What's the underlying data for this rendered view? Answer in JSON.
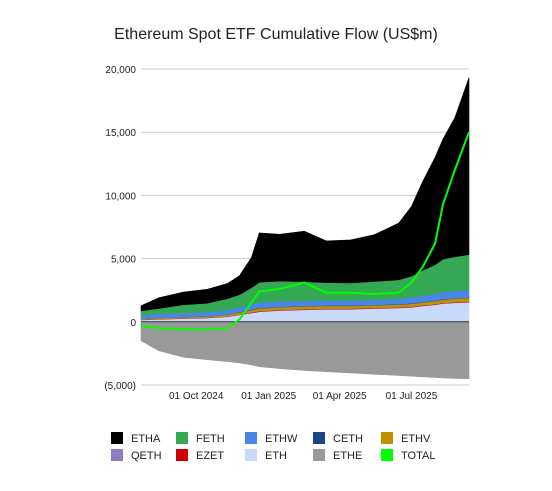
{
  "chart_data": {
    "type": "area",
    "title": "Ethereum Spot ETF Cumulative Flow (US$m)",
    "xlabel": "",
    "ylabel": "",
    "ylim": [
      -5000,
      20000
    ],
    "yticks": [
      20000,
      15000,
      10000,
      5000,
      0,
      -5000
    ],
    "ytick_labels": [
      "20,000",
      "15,000",
      "10,000",
      "5,000",
      "0",
      "(5,000)"
    ],
    "xlim": [
      "2024-07-23",
      "2025-09-12"
    ],
    "xticks": [
      "2024-10-01",
      "2025-01-01",
      "2025-04-01",
      "2025-07-01"
    ],
    "xtick_labels": [
      "01 Oct 2024",
      "01 Jan 2025",
      "01 Apr 2025",
      "01 Jul 2025"
    ],
    "grid": true,
    "legend_position": "bottom",
    "x": [
      "2024-07-23",
      "2024-08-15",
      "2024-09-15",
      "2024-10-15",
      "2024-11-10",
      "2024-11-25",
      "2024-12-10",
      "2024-12-20",
      "2025-01-15",
      "2025-02-15",
      "2025-03-15",
      "2025-04-15",
      "2025-05-15",
      "2025-06-15",
      "2025-07-01",
      "2025-07-15",
      "2025-07-31",
      "2025-08-10",
      "2025-08-25",
      "2025-09-12"
    ],
    "series": [
      {
        "name": "ETHE",
        "color": "#999999",
        "values": [
          -1500,
          -2300,
          -2800,
          -3000,
          -3150,
          -3250,
          -3400,
          -3550,
          -3700,
          -3850,
          -3950,
          -4050,
          -4150,
          -4250,
          -4300,
          -4350,
          -4400,
          -4450,
          -4480,
          -4500
        ]
      },
      {
        "name": "ETH",
        "color": "#c9daf8",
        "values": [
          150,
          200,
          250,
          300,
          400,
          550,
          700,
          800,
          900,
          950,
          1000,
          1000,
          1050,
          1100,
          1150,
          1250,
          1350,
          1450,
          1500,
          1550
        ]
      },
      {
        "name": "EZET",
        "color": "#cc0000",
        "values": [
          20,
          25,
          30,
          30,
          30,
          35,
          40,
          40,
          40,
          40,
          40,
          40,
          40,
          40,
          40,
          40,
          40,
          40,
          40,
          40
        ]
      },
      {
        "name": "QETH",
        "color": "#8e7cc3",
        "values": [
          10,
          15,
          20,
          20,
          20,
          20,
          25,
          25,
          25,
          25,
          25,
          25,
          25,
          25,
          25,
          25,
          25,
          25,
          25,
          25
        ]
      },
      {
        "name": "ETHV",
        "color": "#bf9000",
        "values": [
          50,
          60,
          70,
          80,
          120,
          150,
          180,
          200,
          200,
          210,
          210,
          200,
          200,
          210,
          220,
          230,
          240,
          260,
          270,
          280
        ]
      },
      {
        "name": "CETH",
        "color": "#1c4587",
        "values": [
          5,
          8,
          10,
          10,
          15,
          20,
          25,
          25,
          25,
          25,
          25,
          25,
          25,
          25,
          25,
          25,
          25,
          25,
          25,
          25
        ]
      },
      {
        "name": "ETHW",
        "color": "#4a86e8",
        "values": [
          280,
          300,
          320,
          330,
          350,
          380,
          420,
          440,
          430,
          420,
          400,
          390,
          400,
          420,
          450,
          500,
          530,
          560,
          580,
          600
        ]
      },
      {
        "name": "FETH",
        "color": "#34a853",
        "values": [
          350,
          450,
          650,
          700,
          900,
          1000,
          1300,
          1600,
          1600,
          1500,
          1400,
          1400,
          1450,
          1500,
          1700,
          2000,
          2300,
          2600,
          2700,
          2800
        ]
      },
      {
        "name": "ETHA",
        "color": "#000000",
        "values": [
          400,
          850,
          1000,
          1100,
          1200,
          1500,
          2400,
          3900,
          3700,
          4000,
          3300,
          3400,
          3700,
          4500,
          5500,
          7000,
          8500,
          9500,
          11000,
          14000
        ]
      }
    ],
    "total": {
      "name": "TOTAL",
      "color": "#00ff00",
      "values": [
        -300,
        -500,
        -600,
        -600,
        -500,
        200,
        1500,
        2400,
        2600,
        3100,
        2300,
        2300,
        2200,
        2300,
        3100,
        4300,
        6200,
        9300,
        12000,
        15000
      ]
    },
    "legend": [
      {
        "name": "ETHA",
        "color": "#000000"
      },
      {
        "name": "FETH",
        "color": "#34a853"
      },
      {
        "name": "ETHW",
        "color": "#4a86e8"
      },
      {
        "name": "CETH",
        "color": "#1c4587"
      },
      {
        "name": "ETHV",
        "color": "#bf9000"
      },
      {
        "name": "QETH",
        "color": "#8e7cc3"
      },
      {
        "name": "EZET",
        "color": "#cc0000"
      },
      {
        "name": "ETH",
        "color": "#c9daf8"
      },
      {
        "name": "ETHE",
        "color": "#999999"
      },
      {
        "name": "TOTAL",
        "color": "#00ff00"
      }
    ]
  }
}
